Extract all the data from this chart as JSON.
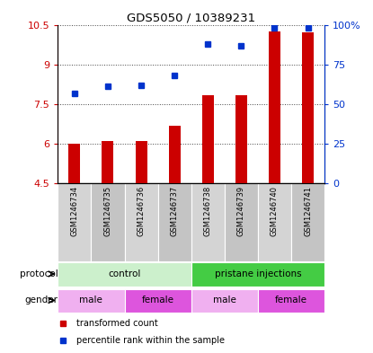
{
  "title": "GDS5050 / 10389231",
  "samples": [
    "GSM1246734",
    "GSM1246735",
    "GSM1246736",
    "GSM1246737",
    "GSM1246738",
    "GSM1246739",
    "GSM1246740",
    "GSM1246741"
  ],
  "transformed_count": [
    6.0,
    6.1,
    6.1,
    6.7,
    7.85,
    7.85,
    10.25,
    10.2
  ],
  "percentile_rank": [
    57,
    61,
    62,
    68,
    88,
    87,
    98,
    98
  ],
  "ylim_left": [
    4.5,
    10.5
  ],
  "ylim_right": [
    0,
    100
  ],
  "yticks_left": [
    4.5,
    6.0,
    7.5,
    9.0,
    10.5
  ],
  "yticks_right": [
    0,
    25,
    50,
    75,
    100
  ],
  "ytick_labels_left": [
    "4.5",
    "6",
    "7.5",
    "9",
    "10.5"
  ],
  "ytick_labels_right": [
    "0",
    "25",
    "50",
    "75",
    "100%"
  ],
  "bar_color": "#cc0000",
  "dot_color": "#0033cc",
  "bar_bottom": 4.5,
  "bar_width": 0.35,
  "protocol_groups": [
    {
      "label": "control",
      "start": 0,
      "end": 4,
      "color": "#ccf0cc"
    },
    {
      "label": "pristane injections",
      "start": 4,
      "end": 8,
      "color": "#44cc44"
    }
  ],
  "gender_groups": [
    {
      "label": "male",
      "start": 0,
      "end": 2,
      "color": "#f0b0f0"
    },
    {
      "label": "female",
      "start": 2,
      "end": 4,
      "color": "#dd55dd"
    },
    {
      "label": "male",
      "start": 4,
      "end": 6,
      "color": "#f0b0f0"
    },
    {
      "label": "female",
      "start": 6,
      "end": 8,
      "color": "#dd55dd"
    }
  ],
  "sample_bg_even": "#d4d4d4",
  "sample_bg_odd": "#c4c4c4",
  "dotted_line_color": "#444444",
  "left_axis_color": "#cc0000",
  "right_axis_color": "#0033cc",
  "legend_items": [
    {
      "label": "transformed count",
      "color": "#cc0000",
      "marker": "s"
    },
    {
      "label": "percentile rank within the sample",
      "color": "#0033cc",
      "marker": "s"
    }
  ]
}
